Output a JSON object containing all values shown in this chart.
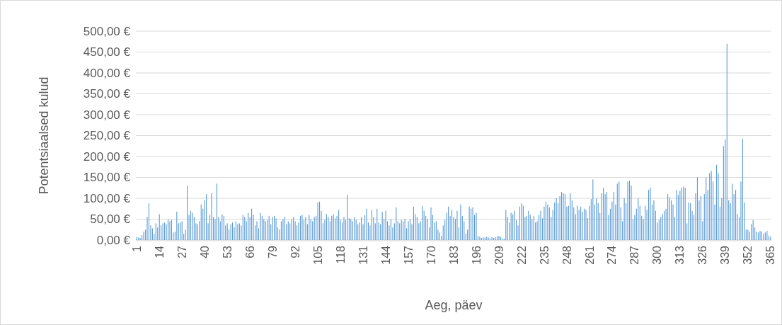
{
  "chart_data": {
    "type": "bar",
    "xlabel": "Aeg, päev",
    "ylabel": "Potentsiaalsed kulud",
    "color": "#5b9bd5",
    "grid": "y",
    "ylim": [
      0,
      500
    ],
    "yticks": [
      {
        "value": 0,
        "label": "0,00 €"
      },
      {
        "value": 50,
        "label": "50,00 €"
      },
      {
        "value": 100,
        "label": "100,00 €"
      },
      {
        "value": 150,
        "label": "150,00 €"
      },
      {
        "value": 200,
        "label": "200,00 €"
      },
      {
        "value": 250,
        "label": "250,00 €"
      },
      {
        "value": 300,
        "label": "300,00 €"
      },
      {
        "value": 350,
        "label": "350,00 €"
      },
      {
        "value": 400,
        "label": "400,00 €"
      },
      {
        "value": 450,
        "label": "450,00 €"
      },
      {
        "value": 500,
        "label": "500,00 €"
      }
    ],
    "xlim": [
      0.5,
      365.5
    ],
    "xticks": [
      1,
      14,
      27,
      40,
      53,
      66,
      79,
      92,
      105,
      118,
      131,
      144,
      157,
      170,
      183,
      196,
      209,
      222,
      235,
      248,
      261,
      274,
      287,
      300,
      313,
      326,
      339,
      352,
      365
    ],
    "x": [
      1,
      2,
      3,
      4,
      5,
      6,
      7,
      8,
      9,
      10,
      11,
      12,
      13,
      14,
      15,
      16,
      17,
      18,
      19,
      20,
      21,
      22,
      23,
      24,
      25,
      26,
      27,
      28,
      29,
      30,
      31,
      32,
      33,
      34,
      35,
      36,
      37,
      38,
      39,
      40,
      41,
      42,
      43,
      44,
      45,
      46,
      47,
      48,
      49,
      50,
      51,
      52,
      53,
      54,
      55,
      56,
      57,
      58,
      59,
      60,
      61,
      62,
      63,
      64,
      65,
      66,
      67,
      68,
      69,
      70,
      71,
      72,
      73,
      74,
      75,
      76,
      77,
      78,
      79,
      80,
      81,
      82,
      83,
      84,
      85,
      86,
      87,
      88,
      89,
      90,
      91,
      92,
      93,
      94,
      95,
      96,
      97,
      98,
      99,
      100,
      101,
      102,
      103,
      104,
      105,
      106,
      107,
      108,
      109,
      110,
      111,
      112,
      113,
      114,
      115,
      116,
      117,
      118,
      119,
      120,
      121,
      122,
      123,
      124,
      125,
      126,
      127,
      128,
      129,
      130,
      131,
      132,
      133,
      134,
      135,
      136,
      137,
      138,
      139,
      140,
      141,
      142,
      143,
      144,
      145,
      146,
      147,
      148,
      149,
      150,
      151,
      152,
      153,
      154,
      155,
      156,
      157,
      158,
      159,
      160,
      161,
      162,
      163,
      164,
      165,
      166,
      167,
      168,
      169,
      170,
      171,
      172,
      173,
      174,
      175,
      176,
      177,
      178,
      179,
      180,
      181,
      182,
      183,
      184,
      185,
      186,
      187,
      188,
      189,
      190,
      191,
      192,
      193,
      194,
      195,
      196,
      197,
      198,
      199,
      200,
      201,
      202,
      203,
      204,
      205,
      206,
      207,
      208,
      209,
      210,
      211,
      212,
      213,
      214,
      215,
      216,
      217,
      218,
      219,
      220,
      221,
      222,
      223,
      224,
      225,
      226,
      227,
      228,
      229,
      230,
      231,
      232,
      233,
      234,
      235,
      236,
      237,
      238,
      239,
      240,
      241,
      242,
      243,
      244,
      245,
      246,
      247,
      248,
      249,
      250,
      251,
      252,
      253,
      254,
      255,
      256,
      257,
      258,
      259,
      260,
      261,
      262,
      263,
      264,
      265,
      266,
      267,
      268,
      269,
      270,
      271,
      272,
      273,
      274,
      275,
      276,
      277,
      278,
      279,
      280,
      281,
      282,
      283,
      284,
      285,
      286,
      287,
      288,
      289,
      290,
      291,
      292,
      293,
      294,
      295,
      296,
      297,
      298,
      299,
      300,
      301,
      302,
      303,
      304,
      305,
      306,
      307,
      308,
      309,
      310,
      311,
      312,
      313,
      314,
      315,
      316,
      317,
      318,
      319,
      320,
      321,
      322,
      323,
      324,
      325,
      326,
      327,
      328,
      329,
      330,
      331,
      332,
      333,
      334,
      335,
      336,
      337,
      338,
      339,
      340,
      341,
      342,
      343,
      344,
      345,
      346,
      347,
      348,
      349,
      350,
      351,
      352,
      353,
      354,
      355,
      356,
      357,
      358,
      359,
      360,
      361,
      362,
      363,
      364,
      365
    ],
    "values": [
      7,
      6,
      5,
      12,
      20,
      25,
      55,
      88,
      35,
      28,
      15,
      40,
      30,
      62,
      35,
      40,
      42,
      38,
      50,
      45,
      48,
      18,
      20,
      68,
      40,
      42,
      45,
      15,
      25,
      130,
      60,
      70,
      65,
      55,
      40,
      38,
      45,
      85,
      75,
      95,
      110,
      40,
      60,
      112,
      55,
      50,
      135,
      55,
      45,
      62,
      58,
      35,
      40,
      25,
      38,
      42,
      30,
      45,
      38,
      40,
      35,
      60,
      55,
      45,
      65,
      55,
      75,
      60,
      35,
      45,
      28,
      65,
      58,
      50,
      45,
      48,
      58,
      38,
      55,
      58,
      52,
      30,
      25,
      45,
      50,
      55,
      38,
      45,
      40,
      50,
      55,
      45,
      35,
      42,
      58,
      60,
      48,
      55,
      38,
      60,
      50,
      45,
      55,
      58,
      90,
      92,
      70,
      40,
      48,
      62,
      55,
      45,
      58,
      62,
      52,
      58,
      72,
      48,
      42,
      55,
      48,
      108,
      52,
      50,
      45,
      55,
      48,
      38,
      42,
      55,
      38,
      60,
      75,
      42,
      35,
      72,
      55,
      40,
      75,
      42,
      38,
      68,
      50,
      70,
      45,
      35,
      50,
      30,
      40,
      78,
      45,
      40,
      48,
      45,
      50,
      28,
      45,
      50,
      38,
      80,
      62,
      55,
      40,
      45,
      82,
      70,
      58,
      50,
      30,
      78,
      60,
      42,
      45,
      25,
      18,
      10,
      35,
      48,
      65,
      80,
      58,
      72,
      55,
      50,
      70,
      30,
      85,
      58,
      45,
      15,
      25,
      80,
      75,
      78,
      60,
      65,
      10,
      8,
      5,
      7,
      6,
      8,
      6,
      4,
      7,
      5,
      7,
      9,
      10,
      8,
      4,
      3,
      72,
      55,
      42,
      65,
      62,
      70,
      48,
      35,
      80,
      88,
      82,
      55,
      58,
      70,
      60,
      50,
      58,
      42,
      45,
      60,
      70,
      52,
      80,
      92,
      85,
      78,
      55,
      72,
      90,
      100,
      88,
      105,
      115,
      112,
      110,
      80,
      82,
      112,
      95,
      78,
      62,
      82,
      72,
      80,
      68,
      75,
      72,
      52,
      82,
      98,
      145,
      85,
      100,
      88,
      65,
      112,
      125,
      110,
      115,
      60,
      75,
      92,
      115,
      85,
      135,
      140,
      78,
      45,
      100,
      88,
      140,
      142,
      130,
      50,
      60,
      75,
      100,
      82,
      58,
      50,
      82,
      72,
      120,
      125,
      85,
      95,
      70,
      42,
      48,
      55,
      62,
      70,
      75,
      110,
      102,
      95,
      85,
      55,
      120,
      108,
      118,
      125,
      128,
      125,
      40,
      90,
      88,
      70,
      60,
      112,
      150,
      95,
      105,
      45,
      110,
      150,
      120,
      160,
      165,
      140,
      85,
      180,
      160,
      80,
      100,
      225,
      240,
      470,
      95,
      88,
      135,
      110,
      120,
      62,
      55,
      140,
      242,
      90,
      25,
      25,
      20,
      38,
      48,
      30,
      20,
      18,
      22,
      20,
      15,
      18,
      22,
      10,
      8
    ]
  }
}
